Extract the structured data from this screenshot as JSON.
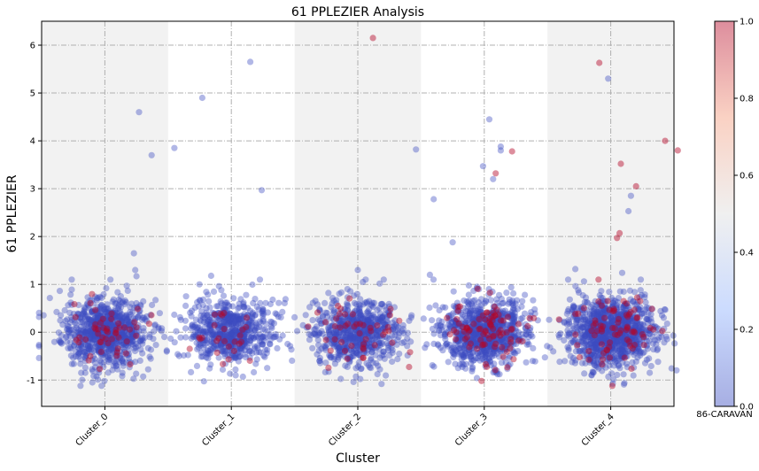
{
  "chart_data": {
    "type": "scatter",
    "title": "61 PPLEZIER Analysis",
    "xlabel": "Cluster",
    "ylabel": "61 PPLEZIER",
    "categories": [
      "Cluster_0",
      "Cluster_1",
      "Cluster_2",
      "Cluster_3",
      "Cluster_4"
    ],
    "ylim": [
      -1.55,
      6.5
    ],
    "yticks": [
      -1,
      0,
      1,
      2,
      3,
      4,
      5,
      6
    ],
    "grid": true,
    "colorbar": {
      "label": "86-CARAVAN",
      "range": [
        0.0,
        1.0
      ],
      "ticks": [
        "0.0",
        "0.2",
        "0.4",
        "0.6",
        "0.8",
        "1.0"
      ],
      "colormap": "coolwarm"
    },
    "colors": {
      "low": "#3b4cc0",
      "mid": "#dddddd",
      "high": "#b40426",
      "band": "#f2f2f2"
    },
    "clusters": [
      {
        "name": "Cluster_0",
        "n_points": 900,
        "share_caravan_1": 0.05,
        "core_spread_y": 0.35,
        "outliers": [
          {
            "x": 0.27,
            "y": 4.6,
            "c": 0
          },
          {
            "x": 0.37,
            "y": 3.7,
            "c": 0
          },
          {
            "x": 0.23,
            "y": 1.65,
            "c": 0
          },
          {
            "x": 0.24,
            "y": 1.3,
            "c": 0
          },
          {
            "x": 0.25,
            "y": 1.17,
            "c": 0
          }
        ]
      },
      {
        "name": "Cluster_1",
        "n_points": 650,
        "share_caravan_1": 0.04,
        "core_spread_y": 0.35,
        "outliers": [
          {
            "x": -0.23,
            "y": 4.9,
            "c": 0
          },
          {
            "x": 0.15,
            "y": 5.65,
            "c": 0
          },
          {
            "x": -0.45,
            "y": 3.85,
            "c": 0
          },
          {
            "x": 0.24,
            "y": 2.97,
            "c": 0
          },
          {
            "x": -0.16,
            "y": 1.18,
            "c": 0
          }
        ]
      },
      {
        "name": "Cluster_2",
        "n_points": 700,
        "share_caravan_1": 0.06,
        "core_spread_y": 0.35,
        "outliers": [
          {
            "x": 0.12,
            "y": 6.15,
            "c": 1
          },
          {
            "x": 0.46,
            "y": 3.82,
            "c": 0
          },
          {
            "x": 0.0,
            "y": 1.3,
            "c": 0
          },
          {
            "x": 0.04,
            "y": 1.05,
            "c": 0
          }
        ]
      },
      {
        "name": "Cluster_3",
        "n_points": 900,
        "share_caravan_1": 0.08,
        "core_spread_y": 0.35,
        "outliers": [
          {
            "x": 0.04,
            "y": 4.45,
            "c": 0
          },
          {
            "x": 0.13,
            "y": 3.88,
            "c": 0
          },
          {
            "x": 0.13,
            "y": 3.8,
            "c": 0
          },
          {
            "x": 0.22,
            "y": 3.78,
            "c": 1
          },
          {
            "x": -0.01,
            "y": 3.47,
            "c": 0
          },
          {
            "x": 0.09,
            "y": 3.32,
            "c": 1
          },
          {
            "x": 0.07,
            "y": 3.2,
            "c": 0
          },
          {
            "x": -0.4,
            "y": 2.78,
            "c": 0
          },
          {
            "x": -0.25,
            "y": 1.88,
            "c": 0
          },
          {
            "x": -0.43,
            "y": 1.2,
            "c": 0
          }
        ]
      },
      {
        "name": "Cluster_4",
        "n_points": 1100,
        "share_caravan_1": 0.07,
        "core_spread_y": 0.35,
        "outliers": [
          {
            "x": -0.09,
            "y": 5.63,
            "c": 1
          },
          {
            "x": -0.02,
            "y": 5.3,
            "c": 0
          },
          {
            "x": 0.43,
            "y": 4.0,
            "c": 1
          },
          {
            "x": 0.53,
            "y": 3.8,
            "c": 1
          },
          {
            "x": 0.08,
            "y": 3.52,
            "c": 1
          },
          {
            "x": 0.2,
            "y": 3.05,
            "c": 1
          },
          {
            "x": 0.16,
            "y": 2.85,
            "c": 0
          },
          {
            "x": 0.14,
            "y": 2.53,
            "c": 0
          },
          {
            "x": 0.07,
            "y": 2.07,
            "c": 1
          },
          {
            "x": 0.05,
            "y": 1.97,
            "c": 1
          },
          {
            "x": -0.28,
            "y": 1.32,
            "c": 0
          },
          {
            "x": 0.09,
            "y": 1.24,
            "c": 0
          }
        ]
      }
    ]
  }
}
